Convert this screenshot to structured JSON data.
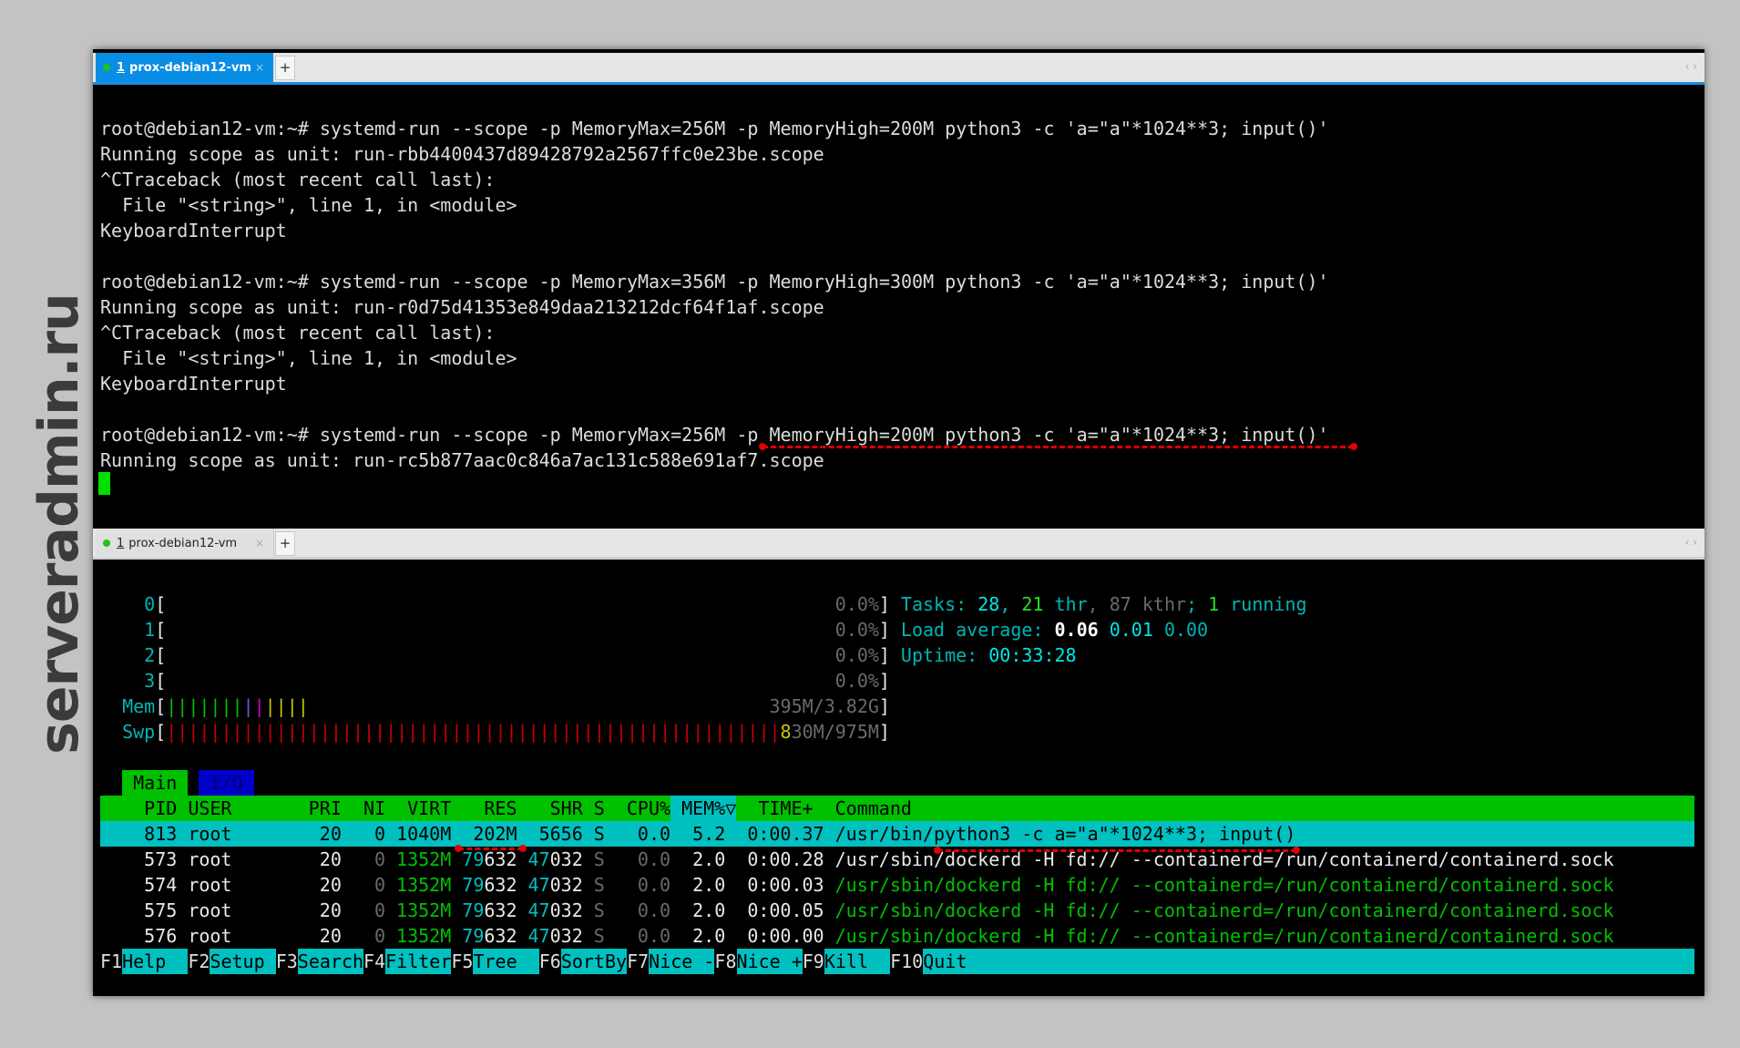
{
  "watermark": "serveradmin.ru",
  "top_pane": {
    "tab": {
      "index": "1",
      "title": "prox-debian12-vm",
      "close": "×"
    },
    "new_tab": "+",
    "scroll_arrows": "‹ ›",
    "lines": [
      "root@debian12-vm:~# systemd-run --scope -p MemoryMax=256M -p MemoryHigh=200M python3 -c 'a=\"a\"*1024**3; input()'",
      "Running scope as unit: run-rbb4400437d89428792a2567ffc0e23be.scope",
      "^CTraceback (most recent call last):",
      "  File \"<string>\", line 1, in <module>",
      "KeyboardInterrupt",
      "",
      "root@debian12-vm:~# systemd-run --scope -p MemoryMax=356M -p MemoryHigh=300M python3 -c 'a=\"a\"*1024**3; input()'",
      "Running scope as unit: run-r0d75d41353e849daa213212dcf64f1af.scope",
      "^CTraceback (most recent call last):",
      "  File \"<string>\", line 1, in <module>",
      "KeyboardInterrupt",
      "",
      "root@debian12-vm:~# systemd-run --scope -p MemoryMax=256M -p MemoryHigh=200M python3 -c 'a=\"a\"*1024**3; input()'",
      "Running scope as unit: run-rc5b877aac0c846a7ac131c588e691af7.scope"
    ]
  },
  "bottom_pane": {
    "tab": {
      "index": "1",
      "title": "prox-debian12-vm",
      "close": "×"
    },
    "new_tab": "+",
    "scroll_arrows": "‹ ›",
    "htop": {
      "cpus": [
        {
          "label": "0",
          "value": "0.0%"
        },
        {
          "label": "1",
          "value": "0.0%"
        },
        {
          "label": "2",
          "value": "0.0%"
        },
        {
          "label": "3",
          "value": "0.0%"
        }
      ],
      "mem": {
        "label": "Mem",
        "text": "395M/3.82G",
        "segments": [
          {
            "color": "#00c000",
            "fraction": 0.108
          },
          {
            "color": "#6060e0",
            "fraction": 0.015
          },
          {
            "color": "#d000d0",
            "fraction": 0.015
          },
          {
            "color": "#c8c800",
            "fraction": 0.062
          }
        ]
      },
      "swp": {
        "label": "Swp",
        "text": "830M/975M",
        "segments": [
          {
            "color": "#c80000",
            "fraction": 0.862
          }
        ]
      },
      "tasks": {
        "label": "Tasks:",
        "tasks": "28",
        "thr": "21",
        "thr_label": "thr",
        "kthr": "87 kthr",
        "running": "1",
        "running_label": "running"
      },
      "load": {
        "label": "Load average:",
        "l1": "0.06",
        "l5": "0.01",
        "l15": "0.00"
      },
      "uptime": {
        "label": "Uptime:",
        "value": "00:33:28"
      },
      "tabs": [
        "Main",
        "I/O"
      ],
      "columns": {
        "pid": "PID",
        "user": "USER",
        "pri": "PRI",
        "ni": "NI",
        "virt": "VIRT",
        "res": "RES",
        "shr": "SHR",
        "s": "S",
        "cpu": "CPU%",
        "mem": "MEM%▽",
        "time": "TIME+",
        "cmd": "Command"
      },
      "processes": [
        {
          "pid": "813",
          "user": "root",
          "pri": "20",
          "ni": "0",
          "virt": "1040M",
          "res": "202M",
          "shr": "5656",
          "s": "S",
          "cpu": "0.0",
          "mem": "5.2",
          "time": "0:00.37",
          "cmd": "/usr/bin/python3 -c a=\"a\"*1024**3; input()",
          "selected": true,
          "thread": false
        },
        {
          "pid": "573",
          "user": "root",
          "pri": "20",
          "ni": "0",
          "virt": "1352M",
          "res": "79632",
          "shr": "47032",
          "s": "S",
          "cpu": "0.0",
          "mem": "2.0",
          "time": "0:00.28",
          "cmd": "/usr/sbin/dockerd -H fd:// --containerd=/run/containerd/containerd.sock",
          "selected": false,
          "thread": false
        },
        {
          "pid": "574",
          "user": "root",
          "pri": "20",
          "ni": "0",
          "virt": "1352M",
          "res": "79632",
          "shr": "47032",
          "s": "S",
          "cpu": "0.0",
          "mem": "2.0",
          "time": "0:00.03",
          "cmd": "/usr/sbin/dockerd -H fd:// --containerd=/run/containerd/containerd.sock",
          "selected": false,
          "thread": true
        },
        {
          "pid": "575",
          "user": "root",
          "pri": "20",
          "ni": "0",
          "virt": "1352M",
          "res": "79632",
          "shr": "47032",
          "s": "S",
          "cpu": "0.0",
          "mem": "2.0",
          "time": "0:00.05",
          "cmd": "/usr/sbin/dockerd -H fd:// --containerd=/run/containerd/containerd.sock",
          "selected": false,
          "thread": true
        },
        {
          "pid": "576",
          "user": "root",
          "pri": "20",
          "ni": "0",
          "virt": "1352M",
          "res": "79632",
          "shr": "47032",
          "s": "S",
          "cpu": "0.0",
          "mem": "2.0",
          "time": "0:00.00",
          "cmd": "/usr/sbin/dockerd -H fd:// --containerd=/run/containerd/containerd.sock",
          "selected": false,
          "thread": true
        }
      ],
      "fkeys": [
        {
          "key": "F1",
          "label": "Help  "
        },
        {
          "key": "F2",
          "label": "Setup "
        },
        {
          "key": "F3",
          "label": "Search"
        },
        {
          "key": "F4",
          "label": "Filter"
        },
        {
          "key": "F5",
          "label": "Tree  "
        },
        {
          "key": "F6",
          "label": "SortBy"
        },
        {
          "key": "F7",
          "label": "Nice -"
        },
        {
          "key": "F8",
          "label": "Nice +"
        },
        {
          "key": "F9",
          "label": "Kill  "
        },
        {
          "key": "F10",
          "label": "Quit"
        }
      ]
    }
  }
}
